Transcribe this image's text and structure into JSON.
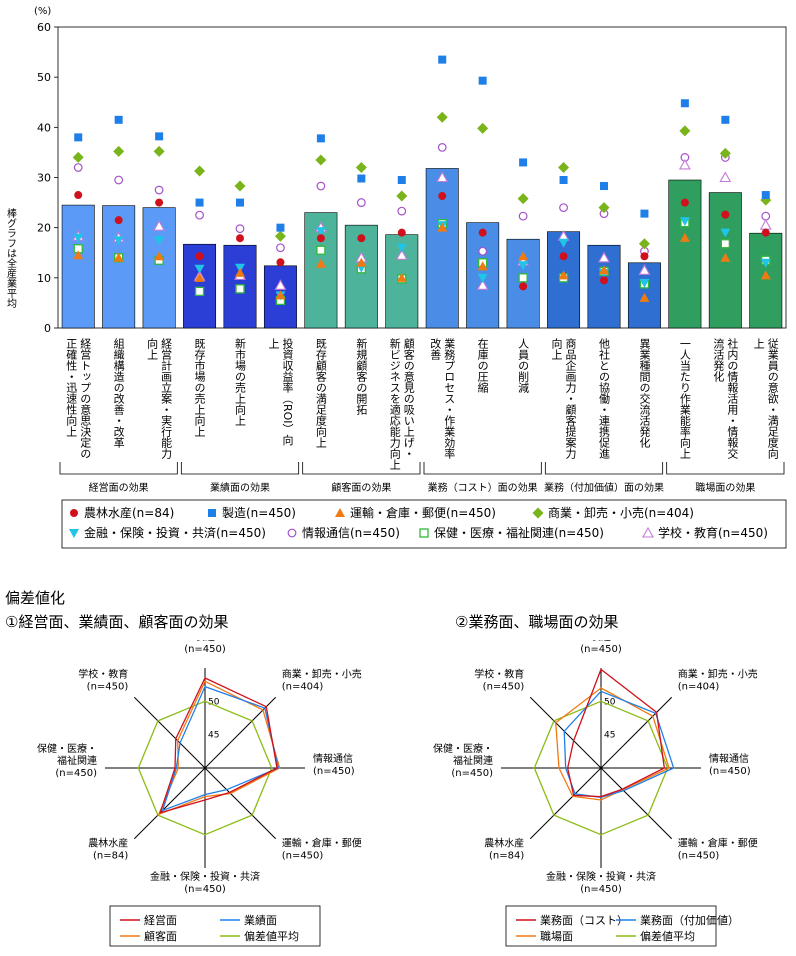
{
  "colors": {
    "bars": [
      "#5b9bf7",
      "#5b9bf7",
      "#5b9bf7",
      "#2b3fd6",
      "#2b3fd6",
      "#2b3fd6",
      "#4db39a",
      "#4db39a",
      "#4db39a",
      "#4a8de6",
      "#4a8de6",
      "#4a8de6",
      "#2e6fd1",
      "#2e6fd1",
      "#2e6fd1",
      "#2f9e5e",
      "#2f9e5e",
      "#2f9e5e"
    ],
    "series": [
      "#d0101c",
      "#1f7fe8",
      "#f07a12",
      "#79b41a",
      "#1fc4e6",
      "#a552c9",
      "#30b83a",
      "#c47ad8"
    ]
  },
  "main_chart": {
    "chart_data": {
      "type": "bar",
      "unit": "(%)",
      "ylabel": "棒グラフは全産業平均",
      "ylim": [
        0,
        60
      ],
      "yticks": [
        "0",
        "10",
        "20",
        "30",
        "40",
        "50",
        "60"
      ],
      "categories": [
        "経営トップの意思決定の正確性・迅速性向上",
        "組織構造の改善・改革",
        "経営計画立案・実行能力向上",
        "既存市場の売上向上",
        "新市場の売上向上",
        "投資収益率（ROI）向上",
        "既存顧客の満足度向上",
        "新規顧客の開拓",
        "顧客の意見の吸い上げ・新ビジネスを適応能力向上",
        "業務プロセス・作業効率改善",
        "在庫の圧縮",
        "人員の削減",
        "商品企画力・顧客提案力向上",
        "他社との協働・連携促進",
        "異業種間の交流活発化",
        "一人当たり作業能率向上",
        "社内の情報活用・情報交流活発化",
        "従業員の意欲・満足度向上"
      ],
      "bars": [
        24.5,
        24.4,
        24.0,
        16.7,
        16.5,
        12.4,
        23.0,
        20.5,
        18.6,
        31.8,
        21.0,
        17.7,
        19.2,
        16.5,
        13.0,
        29.5,
        27.0,
        18.9
      ],
      "series": [
        {
          "name": "農林水産(n=84)",
          "marker": "circle-filled",
          "values": [
            26.5,
            21.5,
            25.0,
            14.3,
            17.9,
            13.1,
            17.9,
            17.9,
            19.0,
            26.3,
            19.0,
            8.3,
            14.3,
            9.5,
            14.3,
            25.0,
            22.6,
            19.0
          ]
        },
        {
          "name": "製造(n=450)",
          "marker": "square-filled",
          "values": [
            38.0,
            41.5,
            38.2,
            25.0,
            25.0,
            20.0,
            37.8,
            29.8,
            29.5,
            53.5,
            49.3,
            33.0,
            29.5,
            28.3,
            22.8,
            44.8,
            41.5,
            26.5
          ]
        },
        {
          "name": "運輸・倉庫・郵便(n=450)",
          "marker": "triangle-filled",
          "values": [
            14.5,
            14.0,
            14.3,
            10.0,
            11.0,
            6.5,
            12.8,
            13.0,
            10.0,
            20.0,
            12.3,
            14.3,
            10.5,
            11.5,
            6.0,
            18.0,
            14.0,
            10.5
          ]
        },
        {
          "name": "商業・卸売・小売(n=404)",
          "marker": "diamond-filled",
          "values": [
            34.0,
            35.2,
            35.2,
            31.3,
            28.3,
            18.3,
            33.5,
            32.0,
            26.3,
            42.0,
            39.8,
            25.8,
            32.0,
            24.0,
            16.8,
            39.3,
            34.8,
            25.5
          ]
        },
        {
          "name": "金融・保険・投資・共済(n=450)",
          "marker": "triangle-down",
          "values": [
            18.0,
            17.5,
            17.5,
            11.8,
            12.0,
            6.5,
            19.3,
            12.0,
            16.0,
            20.5,
            10.0,
            12.5,
            17.0,
            11.0,
            9.0,
            21.3,
            19.0,
            13.0
          ]
        },
        {
          "name": "情報通信(n=450)",
          "marker": "circle-open",
          "values": [
            32.0,
            29.5,
            27.5,
            22.5,
            19.8,
            16.0,
            28.3,
            25.0,
            23.3,
            36.0,
            15.3,
            22.3,
            24.0,
            22.8,
            15.3,
            34.0,
            34.0,
            22.3
          ]
        },
        {
          "name": "保健・医療・福祉関連(n=450)",
          "marker": "square-open",
          "values": [
            15.8,
            14.0,
            13.5,
            7.3,
            7.8,
            5.5,
            15.5,
            11.8,
            9.8,
            20.8,
            13.0,
            10.0,
            10.0,
            11.3,
            8.8,
            21.0,
            16.8,
            13.5
          ]
        },
        {
          "name": "学校・教育(n=450)",
          "marker": "triangle-open",
          "values": [
            18.3,
            18.0,
            20.3,
            10.3,
            10.5,
            8.5,
            20.0,
            14.0,
            14.5,
            30.0,
            8.5,
            13.3,
            18.3,
            14.0,
            11.5,
            32.5,
            30.0,
            20.5
          ]
        }
      ],
      "groups": [
        {
          "label": "経営面の効果",
          "from": 0,
          "to": 2
        },
        {
          "label": "業績面の効果",
          "from": 3,
          "to": 5
        },
        {
          "label": "顧客面の効果",
          "from": 6,
          "to": 8
        },
        {
          "label": "業務（コスト）面の効果",
          "from": 9,
          "to": 11
        },
        {
          "label": "業務（付加価値）面の効果",
          "from": 12,
          "to": 14
        },
        {
          "label": "職場面の効果",
          "from": 15,
          "to": 17
        }
      ]
    }
  },
  "section_title": "偏差値化",
  "radar1": {
    "title": "①経営面、業績面、顧客面の効果",
    "chart_data": {
      "type": "radar",
      "axes": [
        "製造\n(n=450)",
        "商業・卸売・小売\n(n=404)",
        "情報通信\n(n=450)",
        "運輸・倉庫・郵便\n(n=450)",
        "金融・保険・投資・共済\n(n=450)",
        "農林水産\n(n=84)",
        "保健・医療・\n福祉関連\n(n=450)",
        "学校・教育\n(n=450)"
      ],
      "rlim": [
        40,
        55
      ],
      "rticks": [
        "45",
        "50"
      ],
      "series": [
        {
          "name": "経営面",
          "color": "#d0101c",
          "values": [
            53.5,
            53.0,
            50.8,
            45.2,
            44.8,
            49.5,
            44.5,
            46.2
          ]
        },
        {
          "name": "業績面",
          "color": "#1f7fe8",
          "values": [
            52.2,
            52.7,
            51.0,
            44.6,
            44.0,
            49.0,
            44.3,
            45.3
          ]
        },
        {
          "name": "顧客面",
          "color": "#f07a12",
          "values": [
            53.0,
            52.3,
            51.2,
            45.4,
            44.3,
            49.8,
            44.0,
            45.8
          ]
        },
        {
          "name": "偏差値平均",
          "color": "#8cbc14",
          "values": [
            50,
            50,
            50,
            50,
            50,
            50,
            50,
            50
          ]
        }
      ]
    },
    "legend": [
      [
        "経営面",
        "業績面"
      ],
      [
        "顧客面",
        "偏差値平均"
      ]
    ]
  },
  "radar2": {
    "title": "②業務面、職場面の効果",
    "chart_data": {
      "type": "radar",
      "axes": [
        "製造\n(n=450)",
        "商業・卸売・小売\n(n=404)",
        "情報通信\n(n=450)",
        "運輸・倉庫・郵便\n(n=450)",
        "金融・保険・投資・共済\n(n=450)",
        "農林水産\n(n=84)",
        "保健・医療・\n福祉関連\n(n=450)",
        "学校・教育\n(n=450)"
      ],
      "rlim": [
        40,
        55
      ],
      "rticks": [
        "45",
        "50"
      ],
      "series": [
        {
          "name": "業務面（コスト）",
          "color": "#d0101c",
          "values": [
            54.8,
            51.8,
            49.5,
            44.5,
            44.3,
            45.8,
            45.0,
            45.8
          ]
        },
        {
          "name": "業務面（付加価値）",
          "color": "#1f7fe8",
          "values": [
            51.5,
            51.6,
            50.9,
            44.8,
            44.4,
            45.5,
            45.3,
            47.8
          ]
        },
        {
          "name": "職場面",
          "color": "#f07a12",
          "values": [
            52.0,
            51.0,
            50.2,
            44.6,
            44.8,
            46.0,
            46.3,
            49.6
          ]
        },
        {
          "name": "偏差値平均",
          "color": "#8cbc14",
          "values": [
            50,
            50,
            50,
            50,
            50,
            50,
            50,
            50
          ]
        }
      ]
    },
    "legend": [
      [
        "業務面（コスト）",
        "業務面（付加価値）"
      ],
      [
        "職場面",
        "偏差値平均"
      ]
    ]
  }
}
